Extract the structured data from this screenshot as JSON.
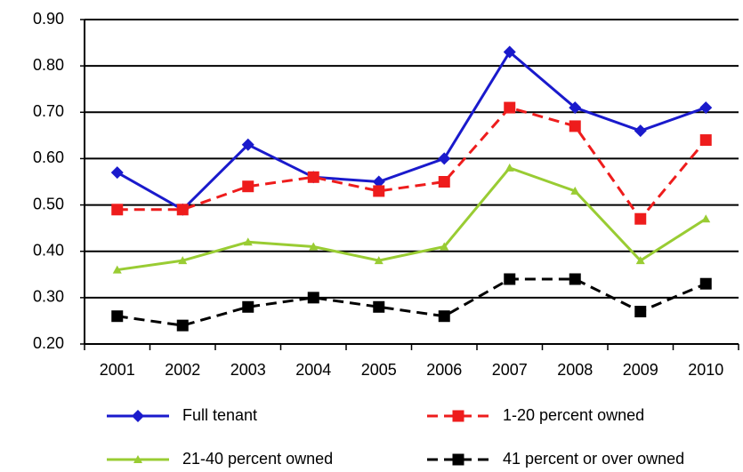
{
  "chart_data": {
    "type": "line",
    "categories": [
      "2001",
      "2002",
      "2003",
      "2004",
      "2005",
      "2006",
      "2007",
      "2008",
      "2009",
      "2010"
    ],
    "series": [
      {
        "name": "Full tenant",
        "color": "#1a1acc",
        "marker": "diamond",
        "dashed": false,
        "values": [
          0.57,
          0.49,
          0.63,
          0.56,
          0.55,
          0.6,
          0.83,
          0.71,
          0.66,
          0.71
        ]
      },
      {
        "name": "1-20 percent owned",
        "color": "#ee1c1c",
        "marker": "square",
        "dashed": true,
        "values": [
          0.49,
          0.49,
          0.54,
          0.56,
          0.53,
          0.55,
          0.71,
          0.67,
          0.47,
          0.64
        ]
      },
      {
        "name": "21-40 percent owned",
        "color": "#99cc33",
        "marker": "triangle",
        "dashed": false,
        "values": [
          0.36,
          0.38,
          0.42,
          0.41,
          0.38,
          0.41,
          0.58,
          0.53,
          0.38,
          0.47
        ]
      },
      {
        "name": "41 percent or over owned",
        "color": "#000000",
        "marker": "square",
        "dashed": true,
        "values": [
          0.26,
          0.24,
          0.28,
          0.3,
          0.28,
          0.26,
          0.34,
          0.34,
          0.27,
          0.33
        ]
      }
    ],
    "ylim": [
      0.2,
      0.9
    ],
    "yticks": [
      {
        "value": 0.2,
        "label": "0.20"
      },
      {
        "value": 0.3,
        "label": "0.30"
      },
      {
        "value": 0.4,
        "label": "0.40"
      },
      {
        "value": 0.5,
        "label": "0.50"
      },
      {
        "value": 0.6,
        "label": "0.60"
      },
      {
        "value": 0.7,
        "label": "0.70"
      },
      {
        "value": 0.8,
        "label": "0.80"
      },
      {
        "value": 0.9,
        "label": "0.90"
      }
    ],
    "grid": true
  }
}
